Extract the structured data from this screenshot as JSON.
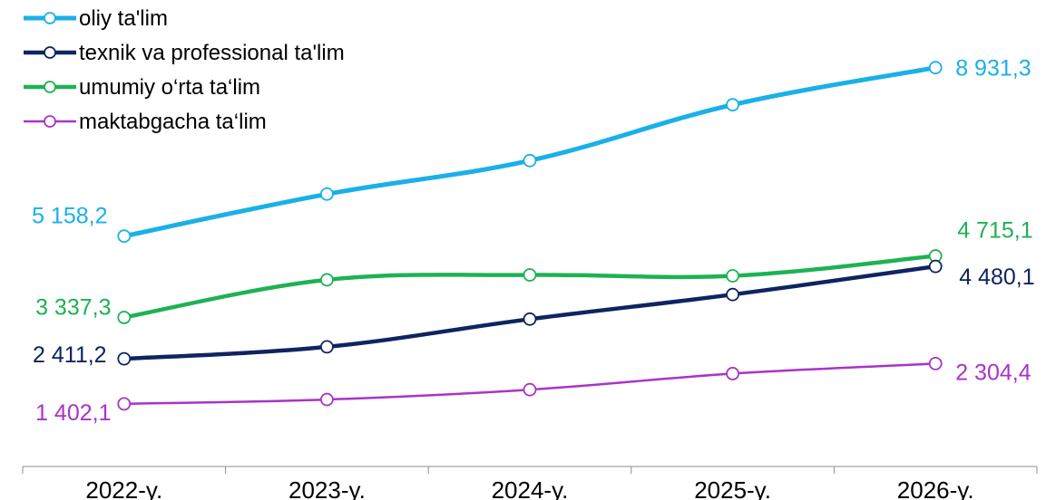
{
  "chart_data": {
    "type": "line",
    "title": "",
    "xlabel": "",
    "ylabel": "",
    "categories": [
      "2022-y.",
      "2023-y.",
      "2024-y.",
      "2025-y.",
      "2026-y."
    ],
    "ylim": [
      0,
      10000
    ],
    "grid": false,
    "legend_position": "top-left",
    "series": [
      {
        "name": "oliy ta'lim",
        "color": "#1AB0E8",
        "values": [
          5158.2,
          6100,
          6850,
          8100,
          8931.3
        ],
        "labels": [
          "5 158,2",
          "",
          "",
          "",
          "8 931,3"
        ]
      },
      {
        "name": "texnik va professional ta'lim",
        "color": "#0F2460",
        "values": [
          2411.2,
          2680,
          3300,
          3850,
          4480.1
        ],
        "labels": [
          "2 411,2",
          "",
          "",
          "",
          "4 480,1"
        ]
      },
      {
        "name": "umumiy o‘rta ta‘lim",
        "color": "#1DB254",
        "values": [
          3337.3,
          4180,
          4290,
          4270,
          4715.1
        ],
        "labels": [
          "3 337,3",
          "",
          "",
          "",
          "4 715,1"
        ]
      },
      {
        "name": "maktabgacha ta‘lim",
        "color": "#A933C9",
        "values": [
          1402.1,
          1500,
          1720,
          2080,
          2304.4
        ],
        "labels": [
          "1 402,1",
          "",
          "",
          "",
          "2 304,4"
        ]
      }
    ]
  }
}
